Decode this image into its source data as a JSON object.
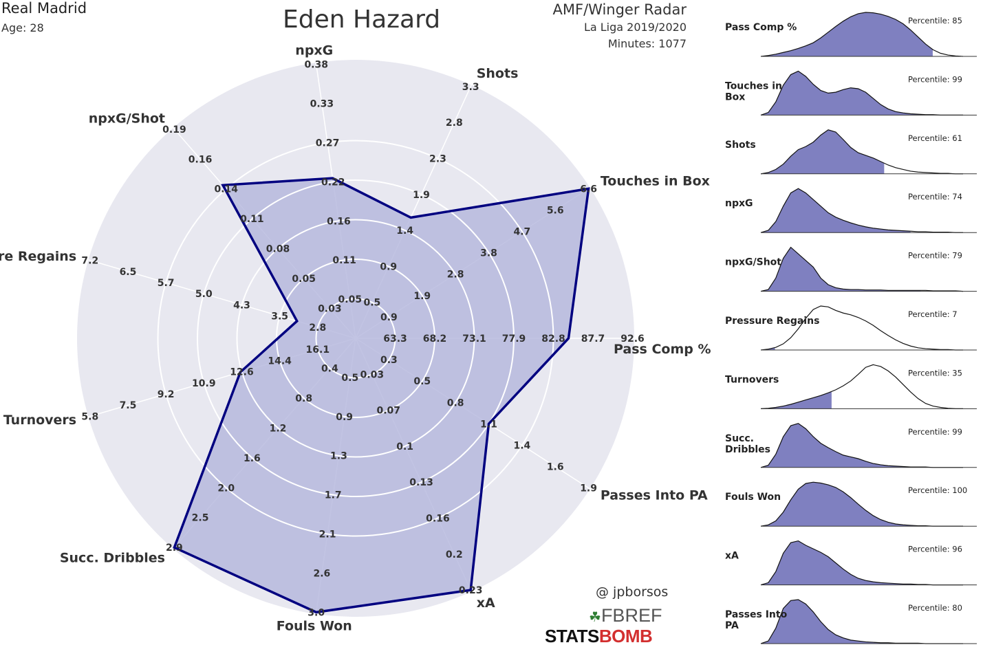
{
  "header": {
    "team": "Real Madrid",
    "age": "Age: 28",
    "player": "Eden Hazard",
    "radar_type": "AMF/Winger Radar",
    "league": "La Liga 2019/2020",
    "minutes": "Minutes: 1077"
  },
  "credits": {
    "handle": "@ jpborsos",
    "fbref_fb": "FB",
    "fbref_ref": "REF",
    "statsbomb_a": "STATS",
    "statsbomb_b": "BOMB"
  },
  "colors": {
    "fill": "#b3b5dc",
    "outline": "#000080",
    "bg_disc": "#e8e8f0",
    "dist_fill": "#7f80c0",
    "team": "#000080",
    "fb_green": "#2e7d32",
    "sb_red": "#d32f2f"
  },
  "chart_data": [
    {
      "type": "radar",
      "title": "Eden Hazard",
      "rings": 5,
      "axes": [
        {
          "name": "Pass Comp %",
          "ticks": [
            "63.3",
            "68.2",
            "73.1",
            "77.9",
            "82.8",
            "87.7",
            "92.6"
          ],
          "value": 84.7
        },
        {
          "name": "Touches in Box",
          "ticks": [
            "0.9",
            "1.9",
            "2.8",
            "3.8",
            "4.7",
            "5.6",
            "6.6"
          ],
          "value": 6.6
        },
        {
          "name": "Shots",
          "ticks": [
            "0.5",
            "0.9",
            "1.4",
            "1.9",
            "2.3",
            "2.8",
            "3.3"
          ],
          "value": 1.6
        },
        {
          "name": "npxG",
          "ticks": [
            "0.05",
            "0.11",
            "0.16",
            "0.22",
            "0.27",
            "0.33",
            "0.38"
          ],
          "value": 0.22
        },
        {
          "name": "npxG/Shot",
          "ticks": [
            "0.03",
            "0.05",
            "0.08",
            "0.11",
            "0.14",
            "0.16",
            "0.19"
          ],
          "value": 0.14
        },
        {
          "name": "Pressure Regains",
          "ticks": [
            "2.8",
            "3.5",
            "4.3",
            "5.0",
            "5.7",
            "6.5",
            "7.2"
          ],
          "value": 3.2
        },
        {
          "name": "Turnovers",
          "ticks": [
            "16.1",
            "14.4",
            "12.6",
            "10.9",
            "9.2",
            "7.5",
            "5.8"
          ],
          "value": 12.6
        },
        {
          "name": "Succ. Dribbles",
          "ticks": [
            "0.4",
            "0.8",
            "1.2",
            "1.6",
            "2.0",
            "2.5",
            "2.9"
          ],
          "value": 2.9
        },
        {
          "name": "Fouls Won",
          "ticks": [
            "0.5",
            "0.9",
            "1.3",
            "1.7",
            "2.1",
            "2.6",
            "3.0"
          ],
          "value": 3.0
        },
        {
          "name": "xA",
          "ticks": [
            "0.03",
            "0.07",
            "0.1",
            "0.13",
            "0.16",
            "0.2",
            "0.23"
          ],
          "value": 0.23
        },
        {
          "name": "Passes Into PA",
          "ticks": [
            "0.3",
            "0.5",
            "0.8",
            "1.1",
            "1.4",
            "1.6",
            "1.9"
          ],
          "value": 1.1
        }
      ]
    },
    {
      "type": "area",
      "panels": [
        {
          "label": "Pass Comp %",
          "percentile_text": "Percentile: 85",
          "percentile": 85,
          "density": [
            0,
            0.02,
            0.05,
            0.09,
            0.13,
            0.18,
            0.24,
            0.31,
            0.42,
            0.55,
            0.68,
            0.8,
            0.9,
            0.97,
            1.0,
            0.99,
            0.96,
            0.91,
            0.84,
            0.74,
            0.6,
            0.44,
            0.28,
            0.15,
            0.07,
            0.03,
            0.01,
            0
          ]
        },
        {
          "label": "Touches in Box",
          "percentile_text": "Percentile: 99",
          "percentile": 99,
          "density": [
            0,
            0.06,
            0.3,
            0.68,
            0.92,
            1.0,
            0.88,
            0.7,
            0.56,
            0.5,
            0.52,
            0.58,
            0.62,
            0.6,
            0.52,
            0.38,
            0.24,
            0.14,
            0.08,
            0.05,
            0.03,
            0.02,
            0.01,
            0.01,
            0,
            0,
            0,
            0
          ]
        },
        {
          "label": "Shots",
          "percentile_text": "Percentile: 61",
          "percentile": 61,
          "density": [
            0,
            0.03,
            0.1,
            0.22,
            0.4,
            0.55,
            0.62,
            0.72,
            0.88,
            1.0,
            0.95,
            0.78,
            0.6,
            0.48,
            0.42,
            0.36,
            0.28,
            0.2,
            0.14,
            0.1,
            0.06,
            0.04,
            0.03,
            0.02,
            0.01,
            0.01,
            0,
            0
          ]
        },
        {
          "label": "npxG",
          "percentile_text": "Percentile: 74",
          "percentile": 74,
          "density": [
            0,
            0.05,
            0.25,
            0.6,
            0.9,
            1.0,
            0.9,
            0.75,
            0.6,
            0.45,
            0.35,
            0.28,
            0.22,
            0.17,
            0.13,
            0.1,
            0.08,
            0.06,
            0.05,
            0.04,
            0.03,
            0.02,
            0.02,
            0.01,
            0.01,
            0.01,
            0,
            0
          ]
        },
        {
          "label": "npxG/Shot",
          "percentile_text": "Percentile: 79",
          "percentile": 79,
          "density": [
            0,
            0.04,
            0.3,
            0.75,
            1.0,
            0.85,
            0.7,
            0.55,
            0.3,
            0.15,
            0.08,
            0.05,
            0.04,
            0.04,
            0.03,
            0.03,
            0.03,
            0.02,
            0.02,
            0.02,
            0.02,
            0.02,
            0.02,
            0.01,
            0.01,
            0.01,
            0.01,
            0
          ]
        },
        {
          "label": "Pressure Regains",
          "percentile_text": "Percentile: 7",
          "percentile": 7,
          "density": [
            0,
            0.02,
            0.06,
            0.14,
            0.28,
            0.48,
            0.72,
            0.92,
            1.0,
            0.98,
            0.9,
            0.84,
            0.8,
            0.74,
            0.66,
            0.56,
            0.44,
            0.33,
            0.23,
            0.15,
            0.09,
            0.05,
            0.03,
            0.02,
            0.01,
            0.01,
            0,
            0
          ]
        },
        {
          "label": "Turnovers",
          "percentile_text": "Percentile: 35",
          "percentile": 35,
          "density": [
            0,
            0.01,
            0.03,
            0.06,
            0.1,
            0.15,
            0.2,
            0.25,
            0.3,
            0.36,
            0.43,
            0.52,
            0.63,
            0.78,
            0.94,
            1.0,
            0.96,
            0.86,
            0.72,
            0.55,
            0.38,
            0.23,
            0.12,
            0.06,
            0.03,
            0.01,
            0,
            0
          ]
        },
        {
          "label": "Succ. Dribbles",
          "percentile_text": "Percentile: 99",
          "percentile": 99,
          "density": [
            0,
            0.05,
            0.3,
            0.7,
            0.95,
            1.0,
            0.88,
            0.7,
            0.55,
            0.45,
            0.36,
            0.28,
            0.24,
            0.2,
            0.14,
            0.09,
            0.06,
            0.04,
            0.03,
            0.02,
            0.01,
            0.01,
            0.01,
            0,
            0,
            0,
            0,
            0
          ]
        },
        {
          "label": "Fouls Won",
          "percentile_text": "Percentile: 100",
          "percentile": 100,
          "density": [
            0,
            0.03,
            0.12,
            0.32,
            0.6,
            0.84,
            0.97,
            1.0,
            0.98,
            0.94,
            0.88,
            0.78,
            0.65,
            0.5,
            0.36,
            0.24,
            0.15,
            0.09,
            0.05,
            0.03,
            0.02,
            0.01,
            0.01,
            0,
            0,
            0,
            0,
            0
          ]
        },
        {
          "label": "xA",
          "percentile_text": "Percentile: 96",
          "percentile": 96,
          "density": [
            0,
            0.05,
            0.3,
            0.72,
            0.96,
            1.0,
            0.9,
            0.82,
            0.74,
            0.64,
            0.5,
            0.36,
            0.24,
            0.15,
            0.1,
            0.07,
            0.05,
            0.04,
            0.03,
            0.02,
            0.02,
            0.01,
            0.01,
            0,
            0,
            0,
            0,
            0
          ]
        },
        {
          "label": "Passes Into PA",
          "percentile_text": "Percentile: 80",
          "percentile": 80,
          "density": [
            0,
            0.06,
            0.35,
            0.8,
            0.98,
            1.0,
            0.9,
            0.72,
            0.5,
            0.32,
            0.2,
            0.13,
            0.08,
            0.06,
            0.04,
            0.03,
            0.02,
            0.02,
            0.01,
            0.01,
            0.01,
            0.01,
            0,
            0,
            0,
            0,
            0,
            0
          ]
        }
      ]
    }
  ]
}
